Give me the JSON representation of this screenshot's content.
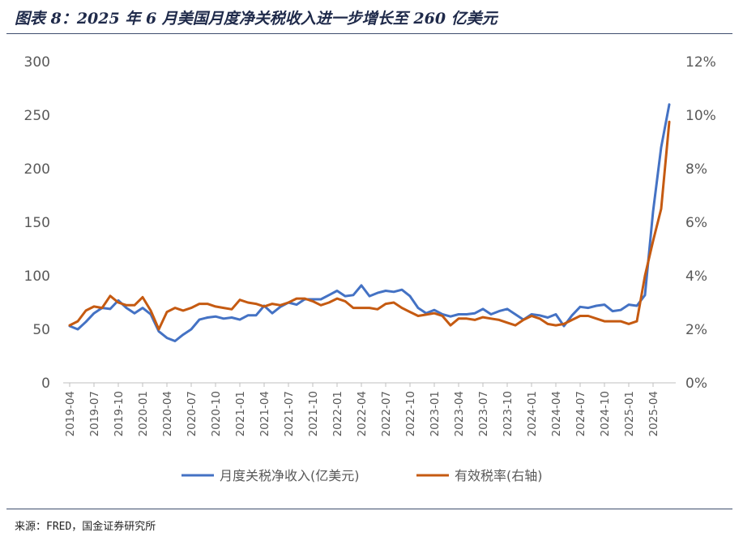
{
  "header": {
    "title": "图表 8：2025 年 6 月美国月度净关税收入进一步增长至 260 亿美元"
  },
  "footer": {
    "source": "来源：FRED，国金证券研究所"
  },
  "colors": {
    "revenue": "#4472c4",
    "rate": "#c55a11",
    "rule": "#3f4e6e",
    "axis": "#bfbfbf",
    "tick_text": "#595959"
  },
  "chart_data": {
    "type": "line",
    "title": "图表 8：2025 年 6 月美国月度净关税收入进一步增长至 260 亿美元",
    "x": [
      "2019-04",
      "2019-05",
      "2019-06",
      "2019-07",
      "2019-08",
      "2019-09",
      "2019-10",
      "2019-11",
      "2019-12",
      "2020-01",
      "2020-02",
      "2020-03",
      "2020-04",
      "2020-05",
      "2020-06",
      "2020-07",
      "2020-08",
      "2020-09",
      "2020-10",
      "2020-11",
      "2020-12",
      "2021-01",
      "2021-02",
      "2021-03",
      "2021-04",
      "2021-05",
      "2021-06",
      "2021-07",
      "2021-08",
      "2021-09",
      "2021-10",
      "2021-11",
      "2021-12",
      "2022-01",
      "2022-02",
      "2022-03",
      "2022-04",
      "2022-05",
      "2022-06",
      "2022-07",
      "2022-08",
      "2022-09",
      "2022-10",
      "2022-11",
      "2022-12",
      "2023-01",
      "2023-02",
      "2023-03",
      "2023-04",
      "2023-05",
      "2023-06",
      "2023-07",
      "2023-08",
      "2023-09",
      "2023-10",
      "2023-11",
      "2023-12",
      "2024-01",
      "2024-02",
      "2024-03",
      "2024-04",
      "2024-05",
      "2024-06",
      "2024-07",
      "2024-08",
      "2024-09",
      "2024-10",
      "2024-11",
      "2024-12",
      "2025-01",
      "2025-02",
      "2025-03",
      "2025-04",
      "2025-05",
      "2025-06"
    ],
    "x_tick_labels": [
      "2019-04",
      "2019-07",
      "2019-10",
      "2020-01",
      "2020-04",
      "2020-07",
      "2020-10",
      "2021-01",
      "2021-04",
      "2021-07",
      "2021-10",
      "2022-01",
      "2022-04",
      "2022-07",
      "2022-10",
      "2023-01",
      "2023-04",
      "2023-07",
      "2023-10",
      "2024-01",
      "2024-04",
      "2024-07",
      "2024-10",
      "2025-01",
      "2025-04"
    ],
    "y_left": {
      "ylim": [
        0,
        300
      ],
      "ticks": [
        "0",
        "50",
        "100",
        "150",
        "200",
        "250",
        "300"
      ]
    },
    "y_right": {
      "ylim": [
        0,
        12
      ],
      "ticks": [
        "0%",
        "2%",
        "4%",
        "6%",
        "8%",
        "10%",
        "12%"
      ]
    },
    "grid": false,
    "legend_position": "bottom",
    "series": [
      {
        "name": "月度关税净收入(亿美元)",
        "axis": "left",
        "values": [
          53,
          50,
          57,
          65,
          70,
          69,
          77,
          70,
          65,
          70,
          64,
          48,
          42,
          39,
          45,
          50,
          59,
          61,
          62,
          60,
          61,
          59,
          63,
          63,
          72,
          65,
          71,
          75,
          73,
          78,
          78,
          78,
          82,
          86,
          81,
          82,
          91,
          81,
          84,
          86,
          85,
          87,
          81,
          70,
          65,
          68,
          64,
          62,
          64,
          64,
          65,
          69,
          64,
          67,
          69,
          64,
          59,
          64,
          63,
          61,
          64,
          53,
          63,
          71,
          70,
          72,
          73,
          67,
          68,
          73,
          72,
          82,
          160,
          220,
          260
        ]
      },
      {
        "name": "有效税率(右轴)",
        "axis": "right",
        "values": [
          2.15,
          2.3,
          2.7,
          2.85,
          2.8,
          3.25,
          3.0,
          2.9,
          2.9,
          3.2,
          2.7,
          2.0,
          2.65,
          2.8,
          2.7,
          2.8,
          2.95,
          2.95,
          2.85,
          2.8,
          2.75,
          3.1,
          3.0,
          2.95,
          2.85,
          2.95,
          2.9,
          3.0,
          3.15,
          3.15,
          3.05,
          2.9,
          3.0,
          3.15,
          3.05,
          2.8,
          2.8,
          2.8,
          2.75,
          2.95,
          3.0,
          2.8,
          2.65,
          2.5,
          2.55,
          2.6,
          2.5,
          2.15,
          2.4,
          2.4,
          2.35,
          2.45,
          2.4,
          2.35,
          2.25,
          2.15,
          2.35,
          2.5,
          2.4,
          2.2,
          2.15,
          2.2,
          2.35,
          2.5,
          2.5,
          2.4,
          2.3,
          2.3,
          2.3,
          2.2,
          2.3,
          4.0,
          5.3,
          6.5,
          9.75
        ]
      }
    ]
  }
}
